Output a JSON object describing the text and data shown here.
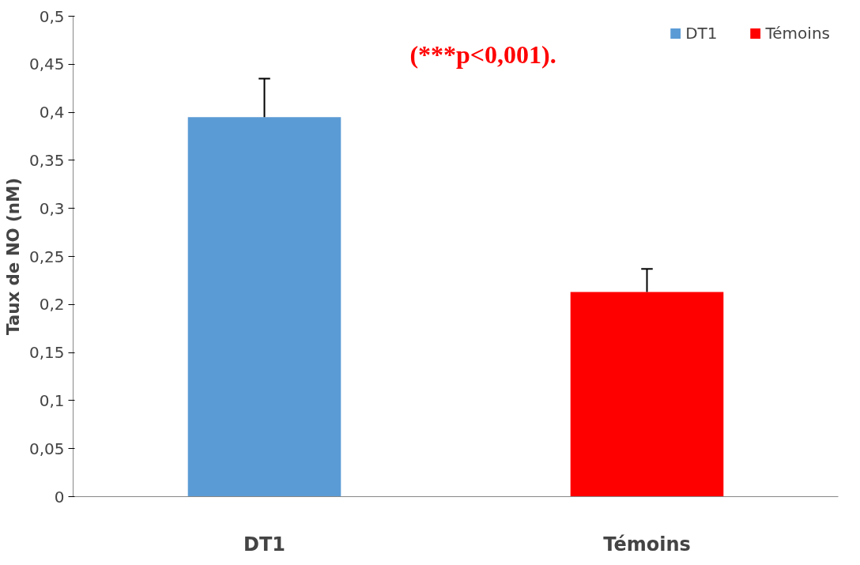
{
  "chart_data": {
    "type": "bar",
    "ylabel": "Taux de NO (nM)",
    "categories": [
      "DT1",
      "Témoins"
    ],
    "series": [
      {
        "name": "DT1",
        "color": "#5b9bd5",
        "values": [
          0.395,
          null
        ],
        "errors": [
          [
            0.395,
            0.435
          ],
          null
        ]
      },
      {
        "name": "Témoins",
        "color": "#ff0000",
        "values": [
          null,
          0.213
        ],
        "errors": [
          null,
          [
            0.213,
            0.237
          ]
        ]
      }
    ],
    "ylim": [
      0,
      0.5
    ],
    "yticks": [
      0,
      {
        "value": 0.05,
        "label": "0,05"
      },
      {
        "value": 0.1,
        "label": "0,1"
      },
      {
        "value": 0.15,
        "label": "0,15"
      },
      {
        "value": 0.2,
        "label": "0,2"
      },
      {
        "value": 0.25,
        "label": "0,25"
      },
      {
        "value": 0.3,
        "label": "0,3"
      },
      {
        "value": 0.35,
        "label": "0,35"
      },
      {
        "value": 0.4,
        "label": "0,4"
      },
      {
        "value": 0.45,
        "label": "0,45"
      },
      {
        "value": 0.5,
        "label": "0,5"
      }
    ],
    "annotations": [
      "(***p<0,001)."
    ],
    "legend": "top right",
    "grid": false
  }
}
